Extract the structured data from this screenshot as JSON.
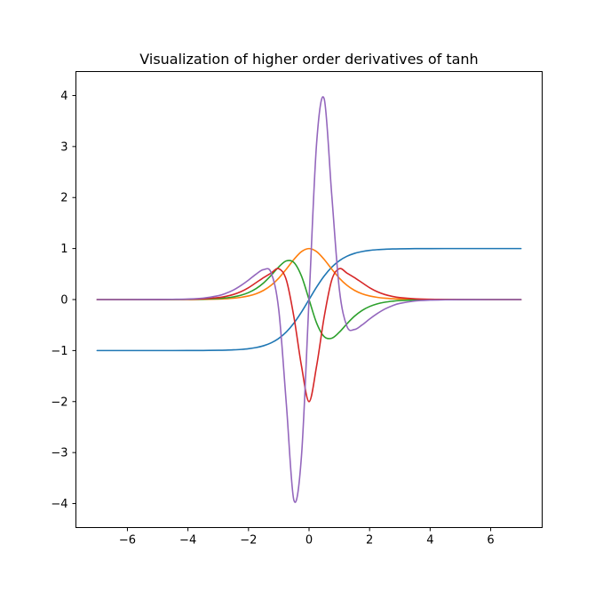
{
  "chart_data": {
    "type": "line",
    "title": "Visualization of higher order derivatives of tanh",
    "xlabel": "",
    "ylabel": "",
    "xlim": [
      -7.7,
      7.7
    ],
    "ylim": [
      -4.47,
      4.47
    ],
    "grid": false,
    "legend": "none",
    "x_ticks": [
      -6,
      -4,
      -2,
      0,
      2,
      4,
      6
    ],
    "x_tick_labels": [
      "−6",
      "−4",
      "−2",
      "0",
      "2",
      "4",
      "6"
    ],
    "y_ticks": [
      4,
      3,
      2,
      1,
      0,
      -1,
      -2,
      -3,
      -4
    ],
    "y_tick_labels": [
      "4",
      "3",
      "2",
      "1",
      "0",
      "−1",
      "−2",
      "−3",
      "−4"
    ],
    "x": [
      -7.0,
      -6.5,
      -6.0,
      -5.5,
      -5.0,
      -4.5,
      -4.0,
      -3.5,
      -3.0,
      -2.75,
      -2.5,
      -2.25,
      -2.0,
      -1.75,
      -1.5,
      -1.25,
      -1.0,
      -0.75,
      -0.5,
      -0.25,
      0.0,
      0.25,
      0.5,
      0.75,
      1.0,
      1.25,
      1.5,
      1.75,
      2.0,
      2.25,
      2.5,
      2.75,
      3.0,
      3.5,
      4.0,
      4.5,
      5.0,
      5.5,
      6.0,
      6.5,
      7.0
    ],
    "series": [
      {
        "color": "#1f77b4",
        "values": [
          -1.0,
          -1.0,
          -1.0,
          -1.0,
          -0.9999,
          -0.9998,
          -0.9993,
          -0.9982,
          -0.9951,
          -0.992,
          -0.9866,
          -0.978,
          -0.964,
          -0.9414,
          -0.9051,
          -0.8483,
          -0.7616,
          -0.6351,
          -0.4621,
          -0.2449,
          0.0,
          0.2449,
          0.4621,
          0.6351,
          0.7616,
          0.8483,
          0.9051,
          0.9414,
          0.964,
          0.978,
          0.9866,
          0.992,
          0.9951,
          0.9982,
          0.9993,
          0.9998,
          0.9999,
          1.0,
          1.0,
          1.0,
          1.0
        ]
      },
      {
        "color": "#ff7f0e",
        "values": [
          0.0,
          0.0,
          0.0,
          0.0001,
          0.0002,
          0.0005,
          0.0013,
          0.0036,
          0.0099,
          0.0163,
          0.0266,
          0.0434,
          0.0707,
          0.1138,
          0.1807,
          0.2805,
          0.42,
          0.5966,
          0.7864,
          0.94,
          1.0,
          0.94,
          0.7864,
          0.5966,
          0.42,
          0.2805,
          0.1807,
          0.1138,
          0.0707,
          0.0434,
          0.0266,
          0.0163,
          0.0099,
          0.0036,
          0.0013,
          0.0005,
          0.0002,
          0.0001,
          0.0,
          0.0,
          0.0
        ]
      },
      {
        "color": "#2ca02c",
        "values": [
          0.0,
          0.0,
          0.0,
          0.0001,
          0.0004,
          0.0011,
          0.0027,
          0.0072,
          0.0197,
          0.0324,
          0.0524,
          0.0849,
          0.1363,
          0.2143,
          0.3271,
          0.4759,
          0.6397,
          0.7578,
          0.7268,
          0.4604,
          0.0,
          -0.4604,
          -0.7268,
          -0.7578,
          -0.6397,
          -0.4759,
          -0.3271,
          -0.2143,
          -0.1363,
          -0.0849,
          -0.0524,
          -0.0324,
          -0.0197,
          -0.0072,
          -0.0027,
          -0.0011,
          -0.0004,
          -0.0001,
          0.0,
          0.0,
          0.0
        ]
      },
      {
        "color": "#d62728",
        "values": [
          0.0,
          0.0,
          0.0,
          0.0002,
          0.0007,
          0.0021,
          0.0054,
          0.0143,
          0.0387,
          0.0626,
          0.0991,
          0.1546,
          0.2326,
          0.3311,
          0.4304,
          0.5203,
          0.6057,
          0.3839,
          -0.3406,
          -1.3016,
          -2.0,
          -1.3016,
          -0.3406,
          0.3839,
          0.6057,
          0.5203,
          0.4304,
          0.3311,
          0.2326,
          0.1546,
          0.0991,
          0.0626,
          0.0387,
          0.0143,
          0.0054,
          0.0021,
          0.0007,
          0.0002,
          0.0,
          0.0,
          0.0
        ]
      },
      {
        "color": "#9467bd",
        "values": [
          0.0,
          0.0,
          0.0,
          0.0004,
          0.0014,
          0.0042,
          0.0105,
          0.0282,
          0.0754,
          0.1209,
          0.1861,
          0.2758,
          0.3811,
          0.498,
          0.587,
          0.5231,
          -0.205,
          -2.0478,
          -3.935,
          -3.066,
          0.0,
          3.066,
          3.935,
          2.0478,
          0.205,
          -0.5231,
          -0.587,
          -0.498,
          -0.3811,
          -0.2758,
          -0.1861,
          -0.1209,
          -0.0754,
          -0.0282,
          -0.0105,
          -0.0042,
          -0.0014,
          -0.0004,
          0.0,
          0.0,
          0.0
        ]
      }
    ]
  }
}
